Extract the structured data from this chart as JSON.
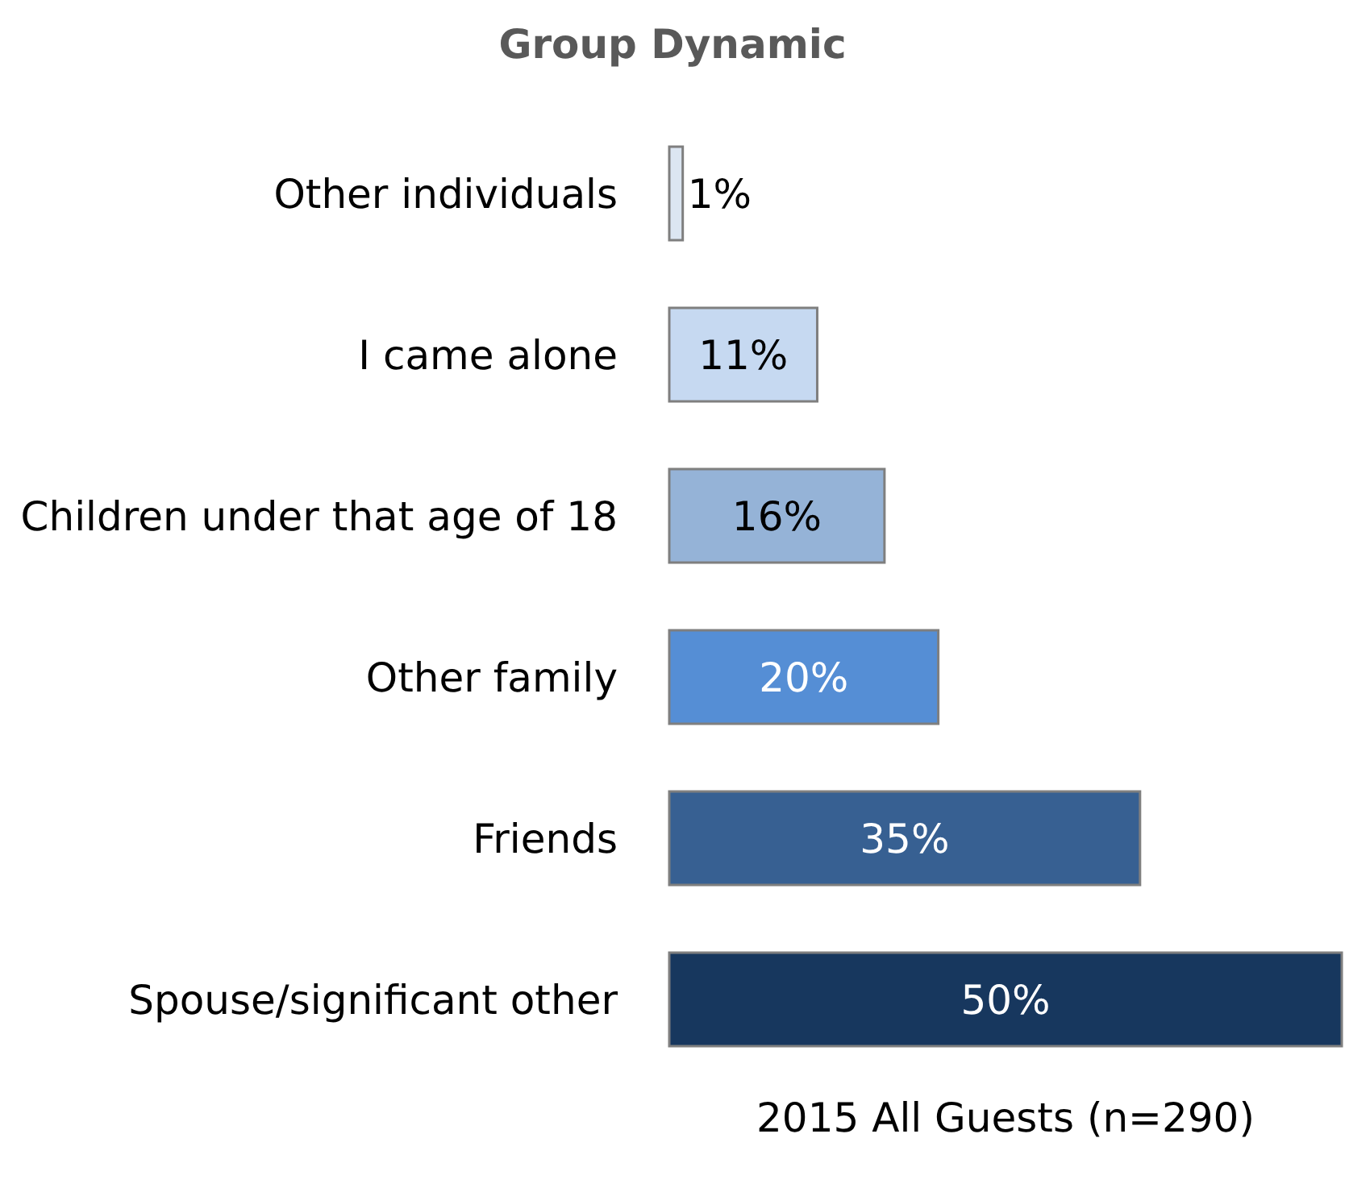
{
  "chart_data": {
    "type": "bar",
    "orientation": "horizontal",
    "title": "Group Dynamic",
    "xlabel": "2015 All Guests (n=290)",
    "categories": [
      "Other individuals",
      "I came alone",
      "Children under that age of 18",
      "Other family",
      "Friends",
      "Spouse/significant other"
    ],
    "values": [
      1,
      11,
      16,
      20,
      35,
      50
    ],
    "colors": [
      "#dce6f2",
      "#c6d9f1",
      "#95b3d7",
      "#558ed5",
      "#376092",
      "#17375e"
    ],
    "data_labels": true,
    "value_labels": [
      "1%",
      "11%",
      "16%",
      "20%",
      "35%",
      "50%"
    ]
  }
}
